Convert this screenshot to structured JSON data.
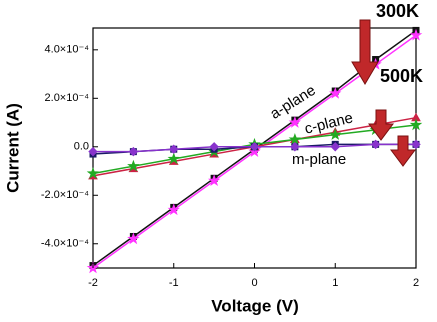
{
  "chart_data": {
    "type": "line",
    "x_label": "Voltage (V)",
    "y_label": "Current (A)",
    "x": [
      -2,
      -1.5,
      -1,
      -0.5,
      0,
      0.5,
      1,
      1.5,
      2
    ],
    "series": [
      {
        "color": "#111111",
        "marker": "square",
        "values": [
          -0.00049,
          -0.00037,
          -0.00025,
          -0.00013,
          -1e-05,
          0.00011,
          0.00023,
          0.00036,
          0.00048
        ]
      },
      {
        "color": "#ff33ff",
        "marker": "star",
        "values": [
          -0.0005,
          -0.00038,
          -0.00026,
          -0.00014,
          -2e-05,
          0.0001,
          0.00022,
          0.00034,
          0.00046
        ]
      },
      {
        "color": "#cc2244",
        "marker": "triangle",
        "values": [
          -0.00012,
          -9e-05,
          -6e-05,
          -3e-05,
          0,
          3e-05,
          6e-05,
          9e-05,
          0.00012
        ]
      },
      {
        "color": "#22aa22",
        "marker": "star",
        "values": [
          -0.00011,
          -8e-05,
          -5e-05,
          -2e-05,
          1e-05,
          3e-05,
          5e-05,
          7e-05,
          9e-05
        ]
      },
      {
        "color": "#1a1a66",
        "marker": "square",
        "values": [
          -3e-05,
          -2e-05,
          -1e-05,
          -1e-05,
          0,
          0,
          1e-05,
          1e-05,
          1e-05
        ]
      },
      {
        "color": "#8833cc",
        "marker": "diamond",
        "values": [
          -2e-05,
          -2e-05,
          -1e-05,
          0,
          0,
          0,
          0,
          1e-05,
          1e-05
        ]
      }
    ],
    "annotations": [
      "300K",
      "500K",
      "a-plane",
      "c-plane",
      "m-plane"
    ],
    "xlim": [
      -2,
      2
    ],
    "xticks": [
      -2,
      -1,
      0,
      1,
      2
    ],
    "ylim": [
      -0.0005,
      0.00049
    ],
    "yticks": [
      {
        "value": -0.0004,
        "label": "-4.0×10⁻⁴"
      },
      {
        "value": -0.0002,
        "label": "-2.0×10⁻⁴"
      },
      {
        "value": 0,
        "label": "0.0"
      },
      {
        "value": 0.0002,
        "label": "2.0×10⁻⁴"
      },
      {
        "value": 0.0004,
        "label": "4.0×10⁻⁴"
      }
    ]
  }
}
